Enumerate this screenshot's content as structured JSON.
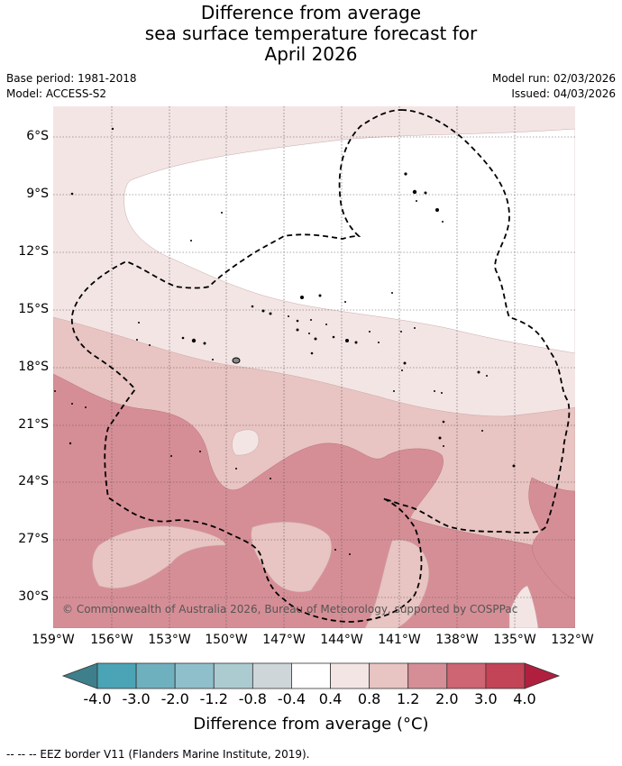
{
  "title": [
    "Difference from average",
    "sea surface temperature forecast for",
    "April 2026"
  ],
  "meta": {
    "base_period": "Base period: 1981-2018",
    "model": "Model: ACCESS-S2",
    "model_run": "Model run: 02/03/2026",
    "issued": "Issued: 04/03/2026"
  },
  "map": {
    "lat_labels": [
      "6°S",
      "9°S",
      "12°S",
      "15°S",
      "18°S",
      "21°S",
      "24°S",
      "27°S",
      "30°S"
    ],
    "lon_labels": [
      "159°W",
      "156°W",
      "153°W",
      "150°W",
      "147°W",
      "144°W",
      "141°W",
      "138°W",
      "135°W",
      "132°W"
    ],
    "copyright": "© Commonwealth of Australia 2026, Bureau of Meteorology, supported by COSPPac"
  },
  "colorbar": {
    "ticks": [
      "-4.0",
      "-3.0",
      "-2.0",
      "-1.2",
      "-0.8",
      "-0.4",
      "0.4",
      "0.8",
      "1.2",
      "2.0",
      "3.0",
      "4.0"
    ],
    "colors": [
      "#3e7f8c",
      "#4aa4b5",
      "#6fb0bf",
      "#8fbfca",
      "#abcbd0",
      "#cfd6d9",
      "#ffffff",
      "#f4e5e5",
      "#e8c4c2",
      "#d68e96",
      "#cd6573",
      "#c24456",
      "#b01f3e"
    ],
    "label": "Difference from average (°C)"
  },
  "footer": "--  --  -- EEZ border V11 (Flanders Marine Institute, 2019)."
}
